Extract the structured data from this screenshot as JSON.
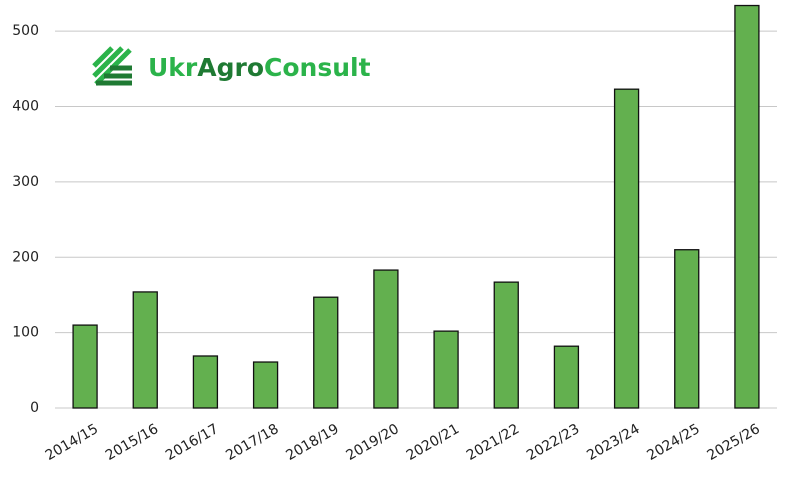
{
  "chart_data": {
    "type": "bar",
    "categories": [
      "2014/15",
      "2015/16",
      "2016/17",
      "2017/18",
      "2018/19",
      "2019/20",
      "2020/21",
      "2021/22",
      "2022/23",
      "2023/24",
      "2024/25",
      "2025/26"
    ],
    "values": [
      110,
      154,
      69,
      61,
      147,
      183,
      102,
      167,
      82,
      423,
      210,
      534
    ],
    "color": "#63b04f",
    "ylim": [
      0,
      540
    ],
    "yticks": [
      0,
      100,
      200,
      300,
      400,
      500
    ],
    "grid": true
  },
  "logo": {
    "parts": [
      "Ukr",
      "Agro",
      "Consult"
    ],
    "colors": [
      "#2bb34a",
      "#1f7a33",
      "#2bb34a"
    ]
  }
}
